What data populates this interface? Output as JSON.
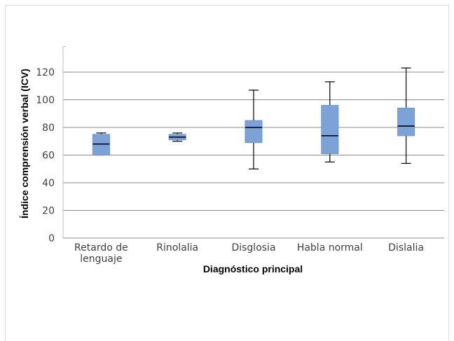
{
  "chart_data": {
    "type": "box",
    "xlabel": "Diagnóstico principal",
    "ylabel": "Índice comprensión verbal (ICV)",
    "ylim": [
      0,
      140
    ],
    "yticks": [
      0,
      20,
      40,
      60,
      80,
      100,
      120
    ],
    "grid": true,
    "categories": [
      {
        "label_lines": [
          "Retardo de",
          "lenguaje"
        ],
        "min": 60,
        "q1": 60,
        "median": 68,
        "q3": 75,
        "max": 76
      },
      {
        "label_lines": [
          "Rinolalia"
        ],
        "min": 70,
        "q1": 71,
        "median": 73,
        "q3": 75,
        "max": 76
      },
      {
        "label_lines": [
          "Disglosia"
        ],
        "min": 50,
        "q1": 69,
        "median": 80,
        "q3": 85,
        "max": 107
      },
      {
        "label_lines": [
          "Habla normal"
        ],
        "min": 55,
        "q1": 61,
        "median": 74,
        "q3": 96,
        "max": 113
      },
      {
        "label_lines": [
          "Dislalia"
        ],
        "min": 54,
        "q1": 74,
        "median": 81,
        "q3": 94,
        "max": 123
      }
    ],
    "colors": {
      "box": "#7ba3d8",
      "box_border": "#6b94cc",
      "median": "#000000",
      "whisker": "#000000",
      "grid": "#8c8c8c"
    }
  }
}
